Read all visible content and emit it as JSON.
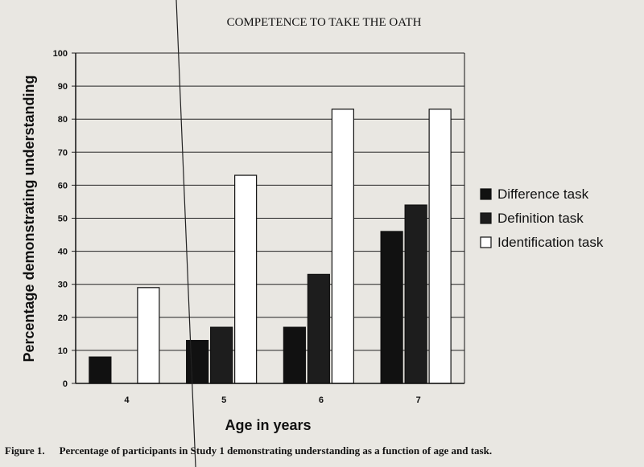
{
  "header": {
    "title": "COMPETENCE TO TAKE THE OATH"
  },
  "caption": {
    "label": "Figure 1.",
    "text": "Percentage of participants in Study 1 demonstrating understanding as a function of age and task."
  },
  "chart_data": {
    "type": "bar",
    "title": "",
    "xlabel": "Age in years",
    "ylabel": "Percentage demonstrating understanding",
    "categories": [
      "4",
      "5",
      "6",
      "7"
    ],
    "ylim": [
      0,
      100
    ],
    "yticks": [
      0,
      10,
      20,
      30,
      40,
      50,
      60,
      70,
      80,
      90,
      100
    ],
    "grid": true,
    "legend_position": "right",
    "series": [
      {
        "name": "Difference task",
        "values": [
          8,
          13,
          17,
          46
        ],
        "color": "#111111"
      },
      {
        "name": "Definition task",
        "values": [
          0,
          17,
          33,
          54
        ],
        "color": "#1d1d1d"
      },
      {
        "name": "Identification task",
        "values": [
          29,
          63,
          83,
          83
        ],
        "color": "#ffffff"
      }
    ]
  }
}
